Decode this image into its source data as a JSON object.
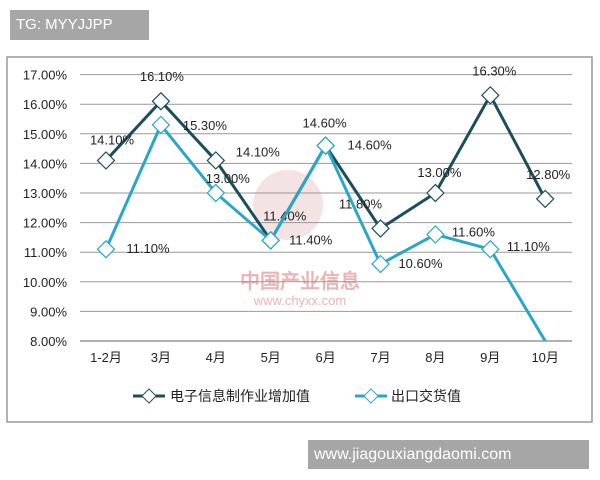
{
  "header_tag": "TG: MYYJJPP",
  "footer_tag": "www.jiagouxiangdaomi.com",
  "watermark": {
    "name": "中国产业信息",
    "url": "www.chyxx.com"
  },
  "chart_data": {
    "type": "line",
    "categories": [
      "1-2月",
      "3月",
      "4月",
      "5月",
      "6月",
      "7月",
      "8月",
      "9月",
      "10月"
    ],
    "ylim": [
      8,
      17
    ],
    "yticks": [
      "8.00%",
      "9.00%",
      "10.00%",
      "11.00%",
      "12.00%",
      "13.00%",
      "14.00%",
      "15.00%",
      "16.00%",
      "17.00%"
    ],
    "grid": true,
    "legend_position": "bottom",
    "series": [
      {
        "name": "电子信息制作业增加值",
        "color": "#1b4e5c",
        "values": [
          14.1,
          16.1,
          14.1,
          11.4,
          14.6,
          11.8,
          13.0,
          16.3,
          12.8
        ],
        "labels": [
          "14.10%",
          "16.10%",
          "14.10%",
          "11.40%",
          "14.60%",
          "11.80%",
          "13.00%",
          "16.30%",
          "12.80%"
        ]
      },
      {
        "name": "出口交货值",
        "color": "#2aa6c8",
        "values": [
          11.1,
          15.3,
          13.0,
          11.4,
          14.6,
          10.6,
          11.6,
          11.1,
          8.0
        ],
        "labels": [
          "11.10%",
          "15.30%",
          "13.00%",
          "11.40%",
          "14.60%",
          "10.60%",
          "11.60%",
          "11.10%",
          ""
        ]
      }
    ]
  }
}
